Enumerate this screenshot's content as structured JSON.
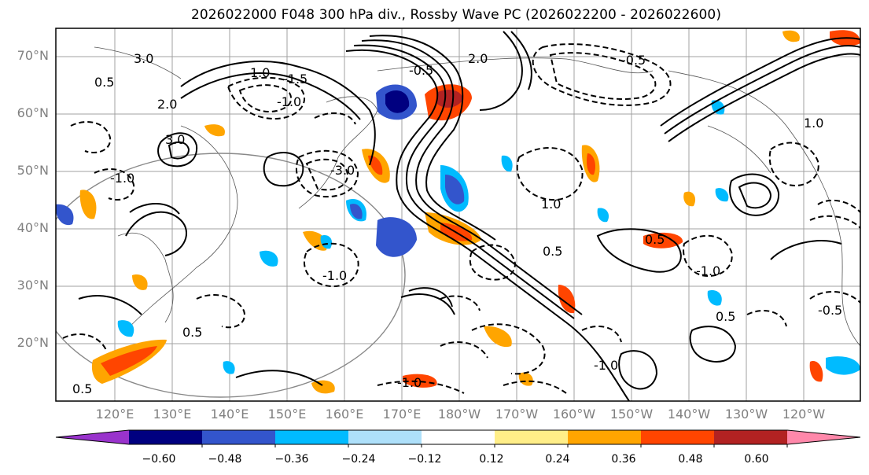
{
  "title": "2026022000 F048 300 hPa div., Rossby Wave PC (2026022200 - 2026022600)",
  "map": {
    "projection": "cylindrical",
    "lat_labels": [
      "70°N",
      "60°N",
      "50°N",
      "40°N",
      "30°N",
      "20°N"
    ],
    "lon_labels": [
      "120°E",
      "130°E",
      "140°E",
      "150°E",
      "160°E",
      "170°E",
      "180°W",
      "170°W",
      "160°W",
      "150°W",
      "140°W",
      "130°W",
      "120°W"
    ],
    "contour_labels": [
      "3.0",
      "2.0",
      "1.0",
      "0.5",
      "-1.0",
      "-1.5",
      "-3.0",
      "-0.5",
      "3.0",
      "-1.0",
      "0.5",
      "2.0",
      "1.0",
      "-0.5",
      "-1.0",
      "0.5",
      "-1.0",
      "0.5",
      "0.5",
      "1.0",
      "-1.0",
      "0.5",
      "-0.5",
      "-1.0"
    ],
    "grid": true
  },
  "colorbar": {
    "extend": "both",
    "colors": [
      "#9933cc",
      "#000080",
      "#3355cc",
      "#00bbff",
      "#aee0fa",
      "#ffffff",
      "#ffee88",
      "#ffa500",
      "#ff4500",
      "#b22222",
      "#ff88aa"
    ],
    "tick_labels": [
      "−0.60",
      "−0.48",
      "−0.36",
      "−0.24",
      "−0.12",
      "0.12",
      "0.24",
      "0.36",
      "0.48",
      "0.60"
    ]
  }
}
